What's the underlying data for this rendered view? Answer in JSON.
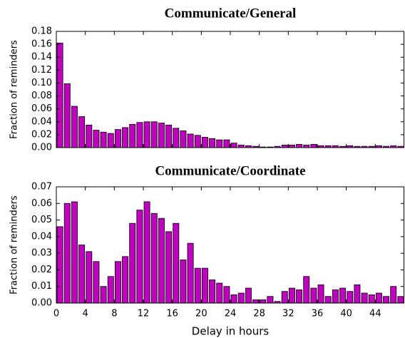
{
  "chart_data": [
    {
      "type": "histogram",
      "title": "Communicate/General",
      "ylabel": "Fraction of reminders",
      "color": "#bf00bf",
      "bins": [
        0,
        1,
        2,
        3,
        4,
        5,
        6,
        7,
        8,
        9,
        10,
        11,
        12,
        13,
        14,
        15,
        16,
        17,
        18,
        19,
        20,
        21,
        22,
        23,
        24,
        25,
        26,
        27,
        28,
        29,
        30,
        31,
        32,
        33,
        34,
        35,
        36,
        37,
        38,
        39,
        40,
        41,
        42,
        43,
        44,
        45,
        46,
        47,
        48
      ],
      "values": [
        0.162,
        0.099,
        0.064,
        0.048,
        0.035,
        0.027,
        0.024,
        0.022,
        0.028,
        0.031,
        0.036,
        0.039,
        0.04,
        0.04,
        0.038,
        0.035,
        0.03,
        0.026,
        0.021,
        0.019,
        0.016,
        0.014,
        0.012,
        0.012,
        0.007,
        0.004,
        0.003,
        0.002,
        0.001,
        0.001,
        0.002,
        0.004,
        0.004,
        0.005,
        0.004,
        0.005,
        0.003,
        0.003,
        0.003,
        0.002,
        0.003,
        0.002,
        0.002,
        0.002,
        0.003,
        0.002,
        0.003,
        0.002
      ],
      "xlim": [
        0,
        48
      ],
      "ylim": [
        0,
        0.18
      ],
      "yticks": [
        {
          "value": 0,
          "label": "0.00"
        },
        {
          "value": 0.02,
          "label": "0.02"
        },
        {
          "value": 0.04,
          "label": "0.04"
        },
        {
          "value": 0.06,
          "label": "0.06"
        },
        {
          "value": 0.08,
          "label": "0.08"
        },
        {
          "value": 0.1,
          "label": "0.10"
        },
        {
          "value": 0.12,
          "label": "0.12"
        },
        {
          "value": 0.14,
          "label": "0.14"
        },
        {
          "value": 0.16,
          "label": "0.16"
        },
        {
          "value": 0.18,
          "label": "0.18"
        }
      ]
    },
    {
      "type": "histogram",
      "title": "Communicate/Coordinate",
      "ylabel": "Fraction of reminders",
      "xlabel": "Delay in hours",
      "color": "#bf00bf",
      "bins": [
        0,
        1,
        2,
        3,
        4,
        5,
        6,
        7,
        8,
        9,
        10,
        11,
        12,
        13,
        14,
        15,
        16,
        17,
        18,
        19,
        20,
        21,
        22,
        23,
        24,
        25,
        26,
        27,
        28,
        29,
        30,
        31,
        32,
        33,
        34,
        35,
        36,
        37,
        38,
        39,
        40,
        41,
        42,
        43,
        44,
        45,
        46,
        47,
        48
      ],
      "values": [
        0.046,
        0.06,
        0.061,
        0.035,
        0.031,
        0.025,
        0.01,
        0.016,
        0.025,
        0.028,
        0.048,
        0.056,
        0.061,
        0.054,
        0.051,
        0.043,
        0.048,
        0.026,
        0.036,
        0.021,
        0.021,
        0.014,
        0.012,
        0.01,
        0.005,
        0.006,
        0.009,
        0.002,
        0.002,
        0.004,
        0.001,
        0.007,
        0.009,
        0.008,
        0.016,
        0.009,
        0.011,
        0.004,
        0.008,
        0.009,
        0.007,
        0.011,
        0.006,
        0.005,
        0.006,
        0.004,
        0.01,
        0.004
      ],
      "xlim": [
        0,
        48
      ],
      "ylim": [
        0,
        0.07
      ],
      "xticks": [
        0,
        4,
        8,
        12,
        16,
        20,
        24,
        28,
        32,
        36,
        40,
        44
      ],
      "yticks": [
        {
          "value": 0,
          "label": "0.00"
        },
        {
          "value": 0.01,
          "label": "0.01"
        },
        {
          "value": 0.02,
          "label": "0.02"
        },
        {
          "value": 0.03,
          "label": "0.03"
        },
        {
          "value": 0.04,
          "label": "0.04"
        },
        {
          "value": 0.05,
          "label": "0.05"
        },
        {
          "value": 0.06,
          "label": "0.06"
        },
        {
          "value": 0.07,
          "label": "0.07"
        }
      ]
    }
  ]
}
